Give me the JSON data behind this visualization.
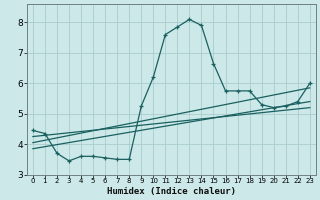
{
  "title": "",
  "xlabel": "Humidex (Indice chaleur)",
  "bg_color": "#cce8e8",
  "grid_color": "#aacccc",
  "line_color": "#1a6060",
  "xlim": [
    -0.5,
    23.5
  ],
  "ylim": [
    3.0,
    8.6
  ],
  "yticks": [
    3,
    4,
    5,
    6,
    7,
    8
  ],
  "xticks": [
    0,
    1,
    2,
    3,
    4,
    5,
    6,
    7,
    8,
    9,
    10,
    11,
    12,
    13,
    14,
    15,
    16,
    17,
    18,
    19,
    20,
    21,
    22,
    23
  ],
  "line1_x": [
    0,
    1,
    2,
    3,
    4,
    5,
    6,
    7,
    8,
    9,
    10,
    11,
    12,
    13,
    14,
    15,
    16,
    17,
    18,
    19,
    20,
    21,
    22,
    23
  ],
  "line1_y": [
    4.45,
    4.35,
    3.7,
    3.45,
    3.6,
    3.6,
    3.55,
    3.5,
    3.5,
    5.25,
    6.2,
    7.6,
    7.85,
    8.1,
    7.9,
    6.65,
    5.75,
    5.75,
    5.75,
    5.3,
    5.2,
    5.25,
    5.4,
    6.0
  ],
  "line2_x": [
    0,
    23
  ],
  "line2_y": [
    4.05,
    5.85
  ],
  "line3_x": [
    0,
    23
  ],
  "line3_y": [
    3.85,
    5.4
  ],
  "line4_x": [
    0,
    23
  ],
  "line4_y": [
    4.25,
    5.2
  ]
}
